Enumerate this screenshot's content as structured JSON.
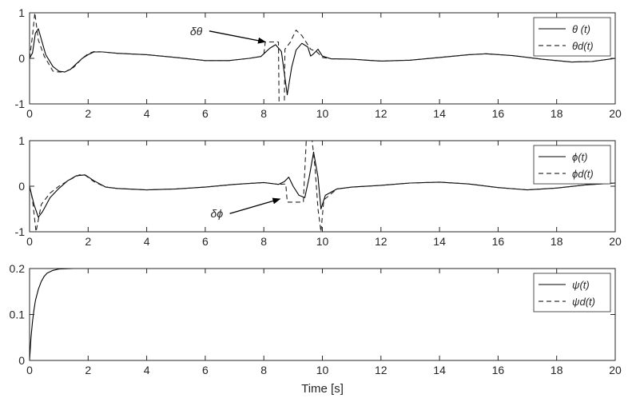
{
  "chart_data": [
    {
      "type": "line",
      "xlim": [
        0,
        20
      ],
      "ylim": [
        -1,
        1
      ],
      "xticks": [
        0,
        2,
        4,
        6,
        8,
        10,
        12,
        14,
        16,
        18,
        20
      ],
      "yticks": [
        -1,
        0,
        1
      ],
      "legend_location": "top-right",
      "grid": false,
      "series": [
        {
          "name": "θ (t)",
          "style": "solid",
          "points": [
            [
              0,
              0
            ],
            [
              0.1,
              0.12
            ],
            [
              0.2,
              0.55
            ],
            [
              0.3,
              0.65
            ],
            [
              0.4,
              0.42
            ],
            [
              0.55,
              0.08
            ],
            [
              0.8,
              -0.18
            ],
            [
              1.0,
              -0.28
            ],
            [
              1.2,
              -0.3
            ],
            [
              1.4,
              -0.24
            ],
            [
              1.6,
              -0.12
            ],
            [
              1.8,
              0.0
            ],
            [
              2.0,
              0.08
            ],
            [
              2.2,
              0.14
            ],
            [
              2.5,
              0.14
            ],
            [
              3.0,
              0.11
            ],
            [
              4.0,
              0.08
            ],
            [
              5.0,
              0.02
            ],
            [
              6.0,
              -0.05
            ],
            [
              6.8,
              -0.05
            ],
            [
              7.5,
              0.0
            ],
            [
              7.9,
              0.04
            ],
            [
              8.0,
              0.1
            ],
            [
              8.2,
              0.22
            ],
            [
              8.4,
              0.3
            ],
            [
              8.6,
              0.15
            ],
            [
              8.8,
              -0.8
            ],
            [
              8.95,
              -0.2
            ],
            [
              9.1,
              0.18
            ],
            [
              9.3,
              0.33
            ],
            [
              9.5,
              0.25
            ],
            [
              9.6,
              0.05
            ],
            [
              9.7,
              0.1
            ],
            [
              9.85,
              0.2
            ],
            [
              10.0,
              0.05
            ],
            [
              10.3,
              -0.01
            ],
            [
              11.0,
              -0.02
            ],
            [
              12.0,
              -0.06
            ],
            [
              13.0,
              -0.04
            ],
            [
              14.0,
              0.02
            ],
            [
              15.0,
              0.08
            ],
            [
              15.6,
              0.1
            ],
            [
              16.5,
              0.06
            ],
            [
              17.5,
              -0.02
            ],
            [
              18.5,
              -0.08
            ],
            [
              19.2,
              -0.07
            ],
            [
              20.0,
              0.0
            ]
          ]
        },
        {
          "name": "θd(t)",
          "style": "dashed",
          "points": [
            [
              0,
              0
            ],
            [
              0.1,
              0.5
            ],
            [
              0.18,
              1.0
            ],
            [
              0.3,
              0.4
            ],
            [
              0.5,
              0.05
            ],
            [
              0.8,
              -0.28
            ],
            [
              1.0,
              -0.3
            ],
            [
              1.2,
              -0.3
            ],
            [
              1.5,
              -0.2
            ],
            [
              1.8,
              0.0
            ],
            [
              2.0,
              0.1
            ],
            [
              2.2,
              0.15
            ],
            [
              2.5,
              0.14
            ],
            [
              3.0,
              0.11
            ],
            [
              4.0,
              0.08
            ],
            [
              5.0,
              0.02
            ],
            [
              6.0,
              -0.05
            ],
            [
              6.8,
              -0.05
            ],
            [
              7.5,
              0.0
            ],
            [
              7.9,
              0.04
            ],
            [
              8.0,
              0.08
            ],
            [
              8.05,
              0.36
            ],
            [
              8.5,
              0.36
            ],
            [
              8.52,
              -1.0
            ],
            [
              8.7,
              -1.0
            ],
            [
              8.72,
              0.2
            ],
            [
              8.9,
              0.35
            ],
            [
              9.1,
              0.62
            ],
            [
              9.3,
              0.5
            ],
            [
              9.6,
              0.2
            ],
            [
              9.8,
              0.15
            ],
            [
              10.0,
              0.02
            ],
            [
              10.3,
              -0.01
            ],
            [
              11.0,
              -0.02
            ],
            [
              12.0,
              -0.06
            ],
            [
              13.0,
              -0.04
            ],
            [
              14.0,
              0.02
            ],
            [
              15.0,
              0.08
            ],
            [
              15.6,
              0.1
            ],
            [
              16.5,
              0.06
            ],
            [
              17.5,
              -0.02
            ],
            [
              18.5,
              -0.08
            ],
            [
              19.2,
              -0.07
            ],
            [
              20.0,
              0.0
            ]
          ]
        }
      ],
      "annotations": [
        {
          "text": "δθ",
          "x_text": 6.3,
          "y_text": 0.6,
          "x_arrow": 8.05,
          "y_arrow": 0.36
        }
      ]
    },
    {
      "type": "line",
      "xlim": [
        0,
        20
      ],
      "ylim": [
        -1,
        1
      ],
      "xticks": [
        0,
        2,
        4,
        6,
        8,
        10,
        12,
        14,
        16,
        18,
        20
      ],
      "yticks": [
        -1,
        0,
        1
      ],
      "legend_location": "top-right",
      "grid": false,
      "series": [
        {
          "name": "ϕ(t)",
          "style": "solid",
          "points": [
            [
              0,
              0
            ],
            [
              0.15,
              -0.4
            ],
            [
              0.3,
              -0.68
            ],
            [
              0.45,
              -0.55
            ],
            [
              0.7,
              -0.25
            ],
            [
              1.0,
              -0.05
            ],
            [
              1.3,
              0.12
            ],
            [
              1.6,
              0.23
            ],
            [
              1.9,
              0.25
            ],
            [
              2.2,
              0.12
            ],
            [
              2.6,
              -0.02
            ],
            [
              3.0,
              -0.05
            ],
            [
              4.0,
              -0.08
            ],
            [
              5.0,
              -0.06
            ],
            [
              6.0,
              -0.02
            ],
            [
              7.0,
              0.04
            ],
            [
              8.0,
              0.08
            ],
            [
              8.5,
              0.04
            ],
            [
              8.7,
              0.1
            ],
            [
              8.85,
              0.2
            ],
            [
              9.0,
              0.0
            ],
            [
              9.2,
              -0.2
            ],
            [
              9.4,
              -0.25
            ],
            [
              9.55,
              0.2
            ],
            [
              9.7,
              0.75
            ],
            [
              9.85,
              0.2
            ],
            [
              9.95,
              -0.5
            ],
            [
              10.1,
              -0.2
            ],
            [
              10.5,
              -0.06
            ],
            [
              11.0,
              -0.02
            ],
            [
              12.0,
              0.02
            ],
            [
              13.0,
              0.07
            ],
            [
              14.0,
              0.09
            ],
            [
              15.0,
              0.05
            ],
            [
              16.0,
              -0.03
            ],
            [
              17.0,
              -0.08
            ],
            [
              18.0,
              -0.04
            ],
            [
              19.0,
              0.03
            ],
            [
              20.0,
              0.07
            ]
          ]
        },
        {
          "name": "ϕd(t)",
          "style": "dashed",
          "points": [
            [
              0,
              0
            ],
            [
              0.1,
              -0.3
            ],
            [
              0.22,
              -1.0
            ],
            [
              0.4,
              -0.4
            ],
            [
              0.7,
              -0.15
            ],
            [
              1.0,
              0.0
            ],
            [
              1.4,
              0.15
            ],
            [
              1.7,
              0.25
            ],
            [
              1.9,
              0.24
            ],
            [
              2.2,
              0.1
            ],
            [
              2.6,
              -0.02
            ],
            [
              3.0,
              -0.05
            ],
            [
              4.0,
              -0.08
            ],
            [
              5.0,
              -0.06
            ],
            [
              6.0,
              -0.02
            ],
            [
              7.0,
              0.04
            ],
            [
              8.0,
              0.08
            ],
            [
              8.5,
              0.04
            ],
            [
              8.75,
              0.05
            ],
            [
              8.8,
              -0.35
            ],
            [
              9.35,
              -0.35
            ],
            [
              9.38,
              0.1
            ],
            [
              9.45,
              1.0
            ],
            [
              9.65,
              1.0
            ],
            [
              9.75,
              0.4
            ],
            [
              9.85,
              -0.5
            ],
            [
              9.95,
              -1.0
            ],
            [
              10.05,
              -0.3
            ],
            [
              10.5,
              -0.06
            ],
            [
              11.0,
              -0.02
            ],
            [
              12.0,
              0.02
            ],
            [
              13.0,
              0.07
            ],
            [
              14.0,
              0.09
            ],
            [
              15.0,
              0.05
            ],
            [
              16.0,
              -0.03
            ],
            [
              17.0,
              -0.08
            ],
            [
              18.0,
              -0.04
            ],
            [
              19.0,
              0.03
            ],
            [
              20.0,
              0.07
            ]
          ]
        }
      ],
      "annotations": [
        {
          "text": "δϕ",
          "x_text": 7.0,
          "y_text": -0.6,
          "x_arrow": 8.55,
          "y_arrow": -0.28
        }
      ]
    },
    {
      "type": "line",
      "xlim": [
        0,
        20
      ],
      "ylim": [
        0,
        0.2
      ],
      "xticks": [
        0,
        2,
        4,
        6,
        8,
        10,
        12,
        14,
        16,
        18,
        20
      ],
      "yticks": [
        0,
        0.1,
        0.2
      ],
      "xlabel": "Time [s]",
      "legend_location": "top-right",
      "grid": false,
      "series": [
        {
          "name": "ψ(t)",
          "style": "solid",
          "points": [
            [
              0,
              0
            ],
            [
              0.05,
              0.05
            ],
            [
              0.1,
              0.085
            ],
            [
              0.15,
              0.11
            ],
            [
              0.2,
              0.13
            ],
            [
              0.3,
              0.155
            ],
            [
              0.4,
              0.172
            ],
            [
              0.5,
              0.183
            ],
            [
              0.6,
              0.19
            ],
            [
              0.8,
              0.196
            ],
            [
              1.0,
              0.199
            ],
            [
              1.5,
              0.2
            ],
            [
              20.0,
              0.2
            ]
          ]
        },
        {
          "name": "ψd(t)",
          "style": "dashed",
          "points": [
            [
              0,
              0.2
            ],
            [
              20.0,
              0.2
            ]
          ]
        }
      ],
      "annotations": []
    }
  ]
}
